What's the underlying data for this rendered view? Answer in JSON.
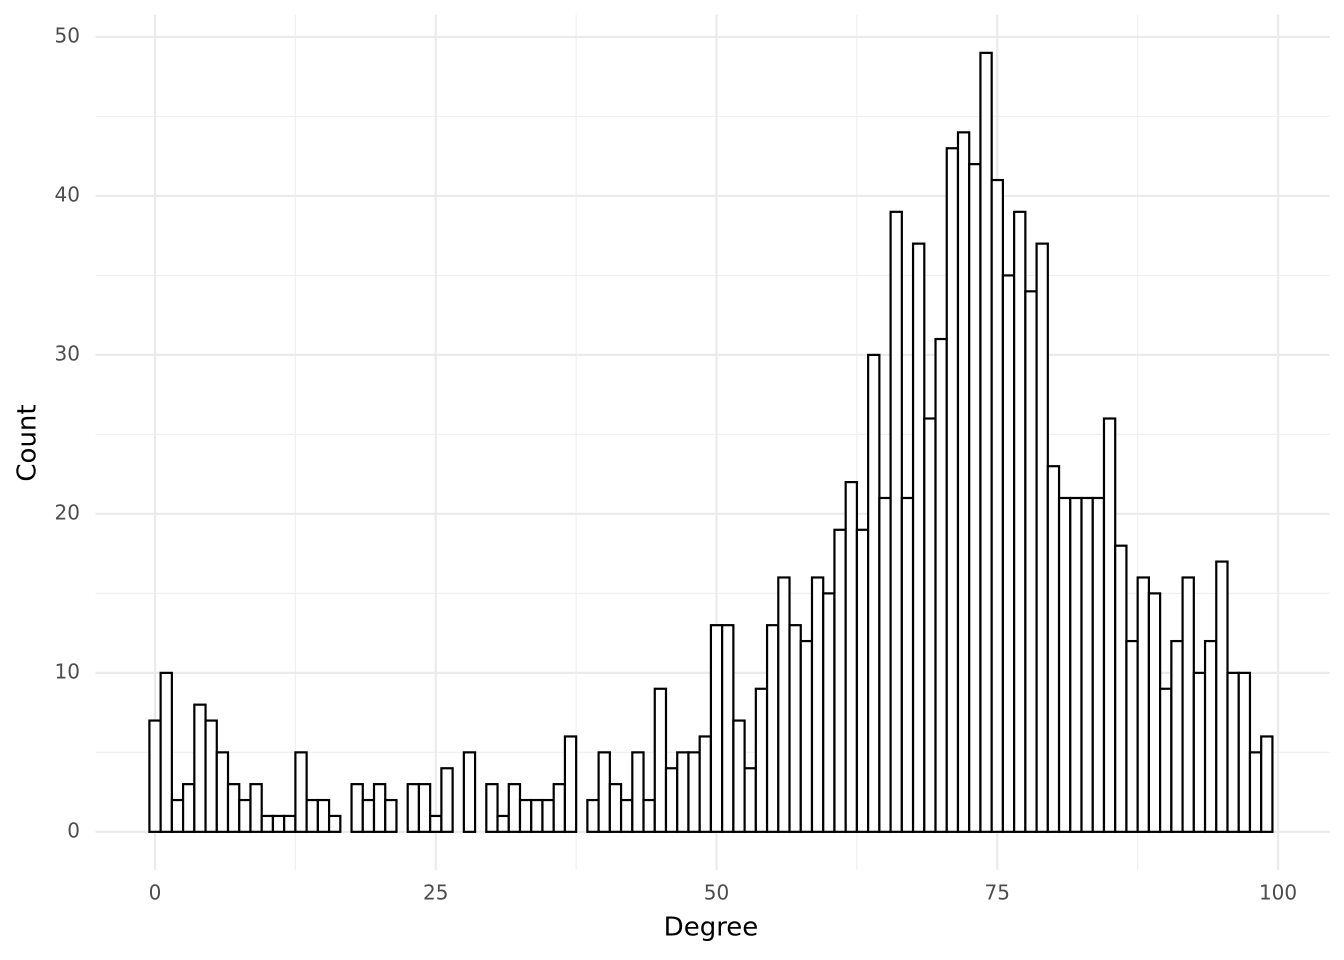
{
  "chart_data": {
    "type": "histogram",
    "x_label": "Degree",
    "y_label": "Count",
    "bins": [
      -0.5,
      0.5,
      1.5,
      2.5,
      3.5,
      4.5,
      5.5,
      6.5,
      7.5,
      8.5,
      9.5,
      10.5,
      11.5,
      12.5,
      13.5,
      14.5,
      15.5,
      16.5,
      17.5,
      18.5,
      19.5,
      20.5,
      21.5,
      22.5,
      23.5,
      24.5,
      25.5,
      26.5,
      27.5,
      28.5,
      29.5,
      30.5,
      31.5,
      32.5,
      33.5,
      34.5,
      35.5,
      36.5,
      37.5,
      38.5,
      39.5,
      40.5,
      41.5,
      42.5,
      43.5,
      44.5,
      45.5,
      46.5,
      47.5,
      48.5,
      49.5,
      50.5,
      51.5,
      52.5,
      53.5,
      54.5,
      55.5,
      56.5,
      57.5,
      58.5,
      59.5,
      60.5,
      61.5,
      62.5,
      63.5,
      64.5,
      65.5,
      66.5,
      67.5,
      68.5,
      69.5,
      70.5,
      71.5,
      72.5,
      73.5,
      74.5,
      75.5,
      76.5,
      77.5,
      78.5,
      79.5,
      80.5,
      81.5,
      82.5,
      83.5,
      84.5,
      85.5,
      86.5,
      87.5,
      88.5,
      89.5,
      90.5,
      91.5,
      92.5,
      93.5,
      94.5,
      95.5,
      96.5,
      97.5,
      98.5,
      99.5
    ],
    "values": [
      7,
      10,
      2,
      3,
      8,
      7,
      5,
      3,
      2,
      3,
      1,
      1,
      1,
      5,
      2,
      2,
      1,
      0,
      3,
      2,
      3,
      2,
      0,
      3,
      3,
      1,
      4,
      0,
      5,
      0,
      3,
      1,
      3,
      2,
      2,
      2,
      3,
      6,
      0,
      2,
      5,
      3,
      2,
      5,
      2,
      9,
      4,
      5,
      5,
      6,
      13,
      13,
      7,
      4,
      9,
      13,
      16,
      13,
      12,
      16,
      15,
      19,
      22,
      19,
      30,
      21,
      39,
      21,
      37,
      26,
      31,
      43,
      44,
      42,
      49,
      41,
      35,
      39,
      34,
      37,
      23,
      21,
      21,
      21,
      21,
      26,
      18,
      12,
      16,
      15,
      9,
      12,
      16,
      10,
      12,
      17,
      10,
      10,
      5,
      6
    ],
    "fill": "#ffffff",
    "edge_color": "#000000",
    "xlim": [
      -5.3,
      104.6
    ],
    "ylim": [
      -2.4,
      51.4
    ],
    "xticks": [
      0,
      25,
      50,
      75,
      100
    ],
    "yticks": [
      0,
      10,
      20,
      30,
      40,
      50
    ],
    "grid": true
  }
}
